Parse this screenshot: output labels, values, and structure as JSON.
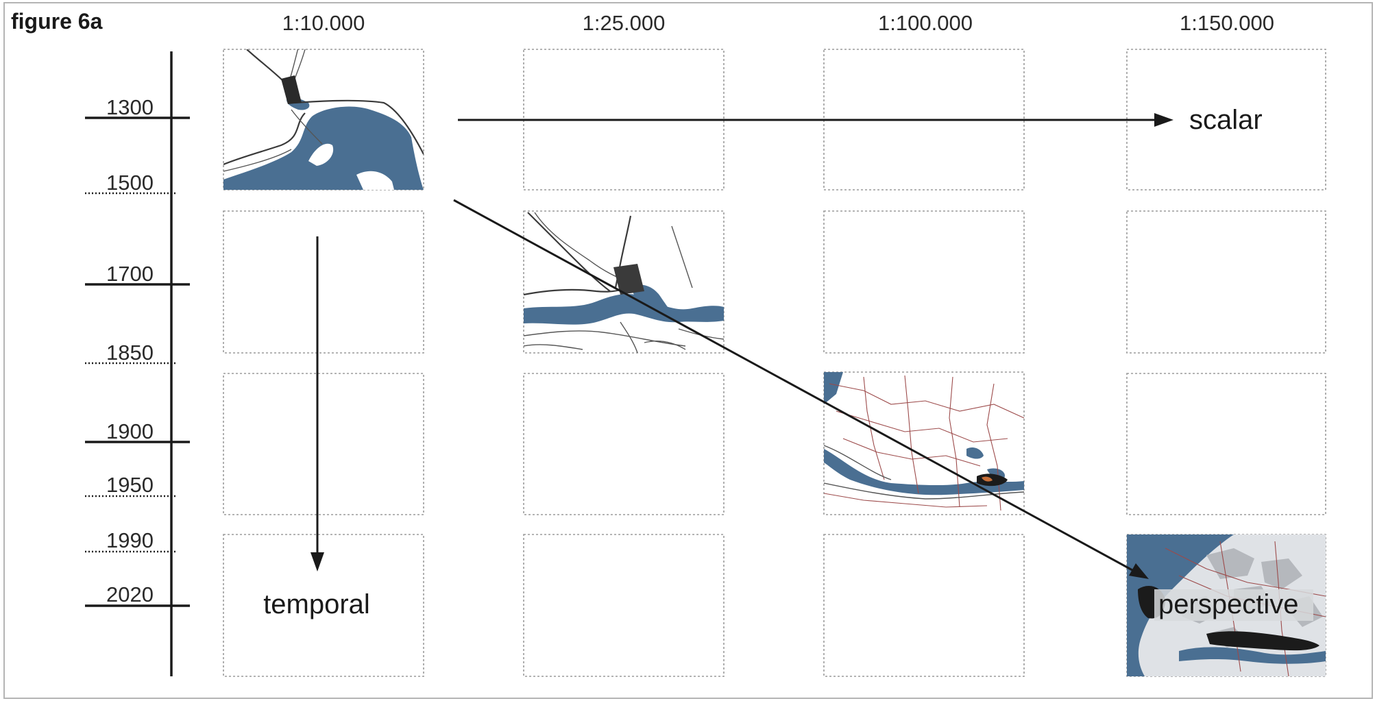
{
  "figure_label": "figure 6a",
  "scales": [
    "1:10.000",
    "1:25.000",
    "1:100.000",
    "1:150.000"
  ],
  "years": [
    "1300",
    "1500",
    "1700",
    "1850",
    "1900",
    "1950",
    "1990",
    "2020"
  ],
  "arrows": {
    "scalar": "scalar",
    "temporal": "temporal",
    "perspective": "perspective"
  },
  "colors": {
    "water": "#4a6f92",
    "line": "#1a1a1a",
    "cell_border": "#9a9a9a"
  }
}
